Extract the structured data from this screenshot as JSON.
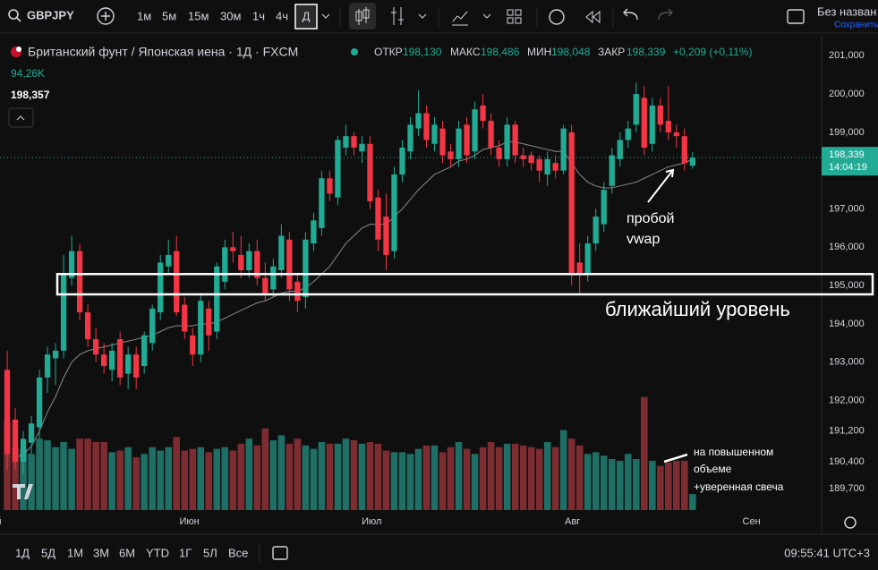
{
  "toolbar": {
    "symbol": "GBPJPY",
    "intervals": [
      "1м",
      "5м",
      "15м",
      "30м",
      "1ч",
      "4ч",
      "Д"
    ],
    "layout_name": "Без назван",
    "save": "Сохранить"
  },
  "legend": {
    "instrument": "Британский фунт / Японская иена · 1Д · FXCM",
    "open_label": "ОТКР",
    "open": "198,130",
    "high_label": "МАКС",
    "high": "198,486",
    "low_label": "МИН",
    "low": "198,048",
    "close_label": "ЗАКР",
    "close": "198,339",
    "change": "+0,209 (+0,11%)",
    "volume": "94,26K",
    "price": "198,357"
  },
  "price_badge": {
    "price": "198,339",
    "timer": "14:04:19"
  },
  "bottom_bar": {
    "ranges": [
      "1Д",
      "5Д",
      "1М",
      "3М",
      "6М",
      "YTD",
      "1Г",
      "5Л",
      "Все"
    ],
    "clock": "09:55:41 UTC+3"
  },
  "chart_data": {
    "type": "candlestick",
    "categories": [
      null,
      null,
      null,
      null,
      null,
      null,
      null,
      null,
      null,
      null,
      null,
      null,
      null,
      null,
      null,
      null,
      null,
      null,
      null,
      null,
      null,
      null,
      null,
      null,
      null,
      null,
      null,
      null,
      null,
      null,
      null,
      null,
      null,
      null,
      null,
      null,
      null,
      null,
      null,
      null,
      null,
      null,
      null,
      null,
      null,
      null,
      null,
      null,
      null,
      null,
      null,
      null,
      null,
      null,
      null,
      null,
      null,
      null,
      null,
      null,
      null,
      null,
      null,
      null,
      null,
      null,
      null,
      null,
      null,
      null,
      null,
      null,
      null,
      null,
      null,
      null,
      null,
      null,
      null,
      null,
      null,
      null,
      null,
      null,
      null,
      null
    ],
    "open": [
      192.8,
      191.5,
      190.4,
      190.9,
      191.3,
      192.6,
      193.1,
      193.3,
      195.2,
      195.9,
      194.3,
      193.6,
      193.2,
      192.8,
      193.6,
      192.7,
      193.2,
      192.9,
      193.5,
      194.3,
      195.5,
      195.9,
      194.5,
      193.7,
      193.2,
      194.4,
      193.8,
      195.1,
      196.0,
      195.8,
      195.4,
      195.9,
      195.2,
      194.9,
      195.4,
      196.2,
      195.1,
      194.7,
      196.1,
      196.5,
      197.8,
      197.3,
      198.6,
      198.9,
      198.5,
      198.7,
      197.3,
      196.8,
      195.9,
      197.9,
      198.5,
      199.1,
      199.5,
      198.7,
      199.1,
      198.5,
      198.3,
      199.2,
      198.5,
      199.7,
      199.3,
      198.6,
      198.3,
      199.2,
      198.4,
      198.4,
      198.3,
      197.9,
      198.2,
      198.0,
      199.0,
      195.6,
      195.3,
      196.1,
      196.6,
      197.6,
      198.3,
      198.8,
      199.2,
      199.9,
      198.7,
      199.7,
      199.3,
      199.0,
      198.9,
      198.13
    ],
    "high": [
      193.3,
      191.8,
      191.2,
      191.6,
      192.8,
      193.4,
      193.5,
      195.8,
      196.3,
      196.1,
      194.5,
      193.9,
      193.5,
      193.5,
      193.8,
      193.4,
      193.4,
      193.8,
      194.5,
      195.8,
      196.2,
      196.3,
      194.7,
      193.9,
      194.8,
      194.6,
      195.6,
      196.2,
      196.4,
      196.3,
      196.1,
      196.2,
      195.6,
      195.7,
      196.6,
      196.4,
      195.3,
      196.4,
      196.9,
      198.0,
      198.0,
      198.9,
      199.2,
      199.0,
      198.9,
      198.9,
      197.5,
      197.4,
      198.1,
      198.8,
      199.4,
      200.1,
      199.7,
      199.4,
      199.3,
      198.7,
      199.3,
      199.4,
      199.8,
      200.0,
      199.5,
      198.8,
      199.4,
      199.3,
      198.6,
      198.5,
      198.4,
      198.5,
      198.4,
      199.2,
      199.2,
      196.1,
      196.3,
      197.0,
      197.7,
      198.6,
      199.0,
      199.3,
      200.3,
      200.2,
      199.9,
      199.9,
      200.2,
      199.2,
      199.1,
      198.486
    ],
    "low": [
      190.2,
      190.2,
      190.1,
      190.6,
      191.0,
      192.2,
      192.4,
      193.1,
      195.0,
      194.1,
      193.4,
      193.0,
      192.7,
      192.5,
      192.4,
      192.3,
      192.3,
      192.7,
      193.3,
      194.1,
      195.3,
      194.2,
      193.6,
      192.9,
      193.0,
      193.3,
      193.6,
      194.9,
      195.6,
      195.2,
      195.2,
      195.0,
      194.6,
      194.7,
      195.2,
      194.6,
      194.3,
      194.4,
      195.9,
      196.3,
      197.2,
      197.1,
      198.4,
      198.4,
      198.2,
      197.0,
      195.9,
      195.4,
      195.7,
      197.7,
      198.3,
      198.9,
      198.6,
      198.5,
      198.2,
      198.1,
      198.1,
      198.2,
      198.3,
      199.1,
      198.4,
      198.1,
      198.1,
      198.2,
      198.1,
      198.0,
      197.7,
      197.6,
      197.8,
      197.9,
      195.0,
      194.8,
      195.1,
      195.9,
      196.4,
      197.4,
      198.1,
      198.6,
      199.0,
      198.4,
      198.5,
      199.0,
      198.8,
      198.6,
      198.0,
      198.048
    ],
    "close": [
      190.6,
      190.4,
      191.0,
      191.4,
      192.6,
      193.2,
      193.3,
      195.3,
      195.9,
      194.3,
      193.6,
      193.2,
      192.9,
      193.3,
      192.6,
      193.2,
      192.6,
      193.7,
      194.4,
      195.6,
      195.8,
      194.3,
      193.8,
      193.2,
      194.6,
      193.7,
      195.5,
      196.0,
      195.9,
      195.4,
      195.9,
      195.2,
      194.8,
      195.5,
      196.3,
      194.9,
      194.6,
      196.2,
      196.7,
      197.8,
      197.4,
      198.8,
      198.9,
      198.6,
      198.7,
      197.2,
      196.2,
      195.8,
      197.9,
      198.6,
      199.2,
      199.5,
      198.8,
      199.2,
      198.4,
      198.3,
      199.1,
      198.4,
      199.6,
      199.3,
      198.6,
      198.3,
      199.2,
      198.4,
      198.3,
      198.2,
      198.0,
      198.3,
      198.0,
      199.1,
      195.3,
      195.3,
      196.1,
      196.8,
      197.5,
      198.4,
      198.8,
      199.1,
      200.0,
      198.6,
      199.7,
      199.2,
      199.0,
      198.9,
      198.2,
      198.339
    ],
    "volume": [
      520,
      370,
      360,
      330,
      420,
      410,
      370,
      400,
      360,
      420,
      420,
      400,
      400,
      340,
      350,
      370,
      310,
      330,
      370,
      350,
      370,
      430,
      350,
      360,
      370,
      340,
      360,
      370,
      350,
      390,
      420,
      380,
      480,
      410,
      440,
      390,
      420,
      380,
      360,
      400,
      390,
      390,
      420,
      410,
      390,
      400,
      390,
      350,
      340,
      340,
      330,
      360,
      380,
      380,
      340,
      370,
      400,
      360,
      330,
      370,
      400,
      370,
      390,
      390,
      380,
      370,
      360,
      400,
      370,
      470,
      420,
      380,
      330,
      340,
      320,
      300,
      290,
      330,
      300,
      665,
      290,
      260,
      280,
      290,
      290,
      94.26
    ],
    "vwap": [
      null,
      190.5,
      190.6,
      190.8,
      191.2,
      191.7,
      192.1,
      192.6,
      193.0,
      193.2,
      193.3,
      193.35,
      193.4,
      193.45,
      193.5,
      193.55,
      193.6,
      193.65,
      193.7,
      193.8,
      193.9,
      193.95,
      193.95,
      193.95,
      194.0,
      194.0,
      194.05,
      194.15,
      194.25,
      194.35,
      194.45,
      194.55,
      194.6,
      194.7,
      194.8,
      194.85,
      194.85,
      194.95,
      195.1,
      195.3,
      195.5,
      195.8,
      196.1,
      196.3,
      196.5,
      196.6,
      196.6,
      196.6,
      196.8,
      197.0,
      197.25,
      197.5,
      197.7,
      197.9,
      198.0,
      198.1,
      198.25,
      198.3,
      198.4,
      198.55,
      198.6,
      198.65,
      198.75,
      198.75,
      198.7,
      198.65,
      198.6,
      198.55,
      198.5,
      198.5,
      198.2,
      197.9,
      197.7,
      197.6,
      197.55,
      197.55,
      197.6,
      197.65,
      197.7,
      197.8,
      197.9,
      198.0,
      198.1,
      198.15,
      198.2,
      198.3
    ],
    "colors": {
      "up": "#22ab94",
      "down": "#f23645",
      "up_volume": "#1f6f66",
      "down_volume": "#7d2d31",
      "vwap": "#8a8a8a"
    },
    "xlim": [
      -0.89,
      101.0
    ],
    "ylim": [
      189.14,
      201.52
    ],
    "volume_lim": [
      0,
      2790
    ],
    "xticks": [
      {
        "value": -1.4,
        "label": "ай"
      },
      {
        "value": 22.6,
        "label": "Июн"
      },
      {
        "value": 45.2,
        "label": "Июл"
      },
      {
        "value": 70.1,
        "label": "Авг"
      },
      {
        "value": 92.3,
        "label": "Сен"
      }
    ],
    "yticks": [
      {
        "value": 201,
        "label": "201,000"
      },
      {
        "value": 200,
        "label": "200,000"
      },
      {
        "value": 199,
        "label": "199,000"
      },
      {
        "value": 197,
        "label": "197,000"
      },
      {
        "value": 196,
        "label": "196,000"
      },
      {
        "value": 195,
        "label": "195,000"
      },
      {
        "value": 194,
        "label": "194,000"
      },
      {
        "value": 193,
        "label": "193,000"
      },
      {
        "value": 192,
        "label": "192,000"
      },
      {
        "value": 191.2,
        "label": "191,200"
      },
      {
        "value": 190.4,
        "label": "190,400"
      },
      {
        "value": 189.7,
        "label": "189,700"
      }
    ],
    "grid": false,
    "level_zone": [
      194.77,
      195.3
    ],
    "annotations": [
      "пробой",
      "vwap",
      "ближайший уровень",
      "на повышенном",
      "объеме",
      "+уверенная свеча"
    ]
  }
}
